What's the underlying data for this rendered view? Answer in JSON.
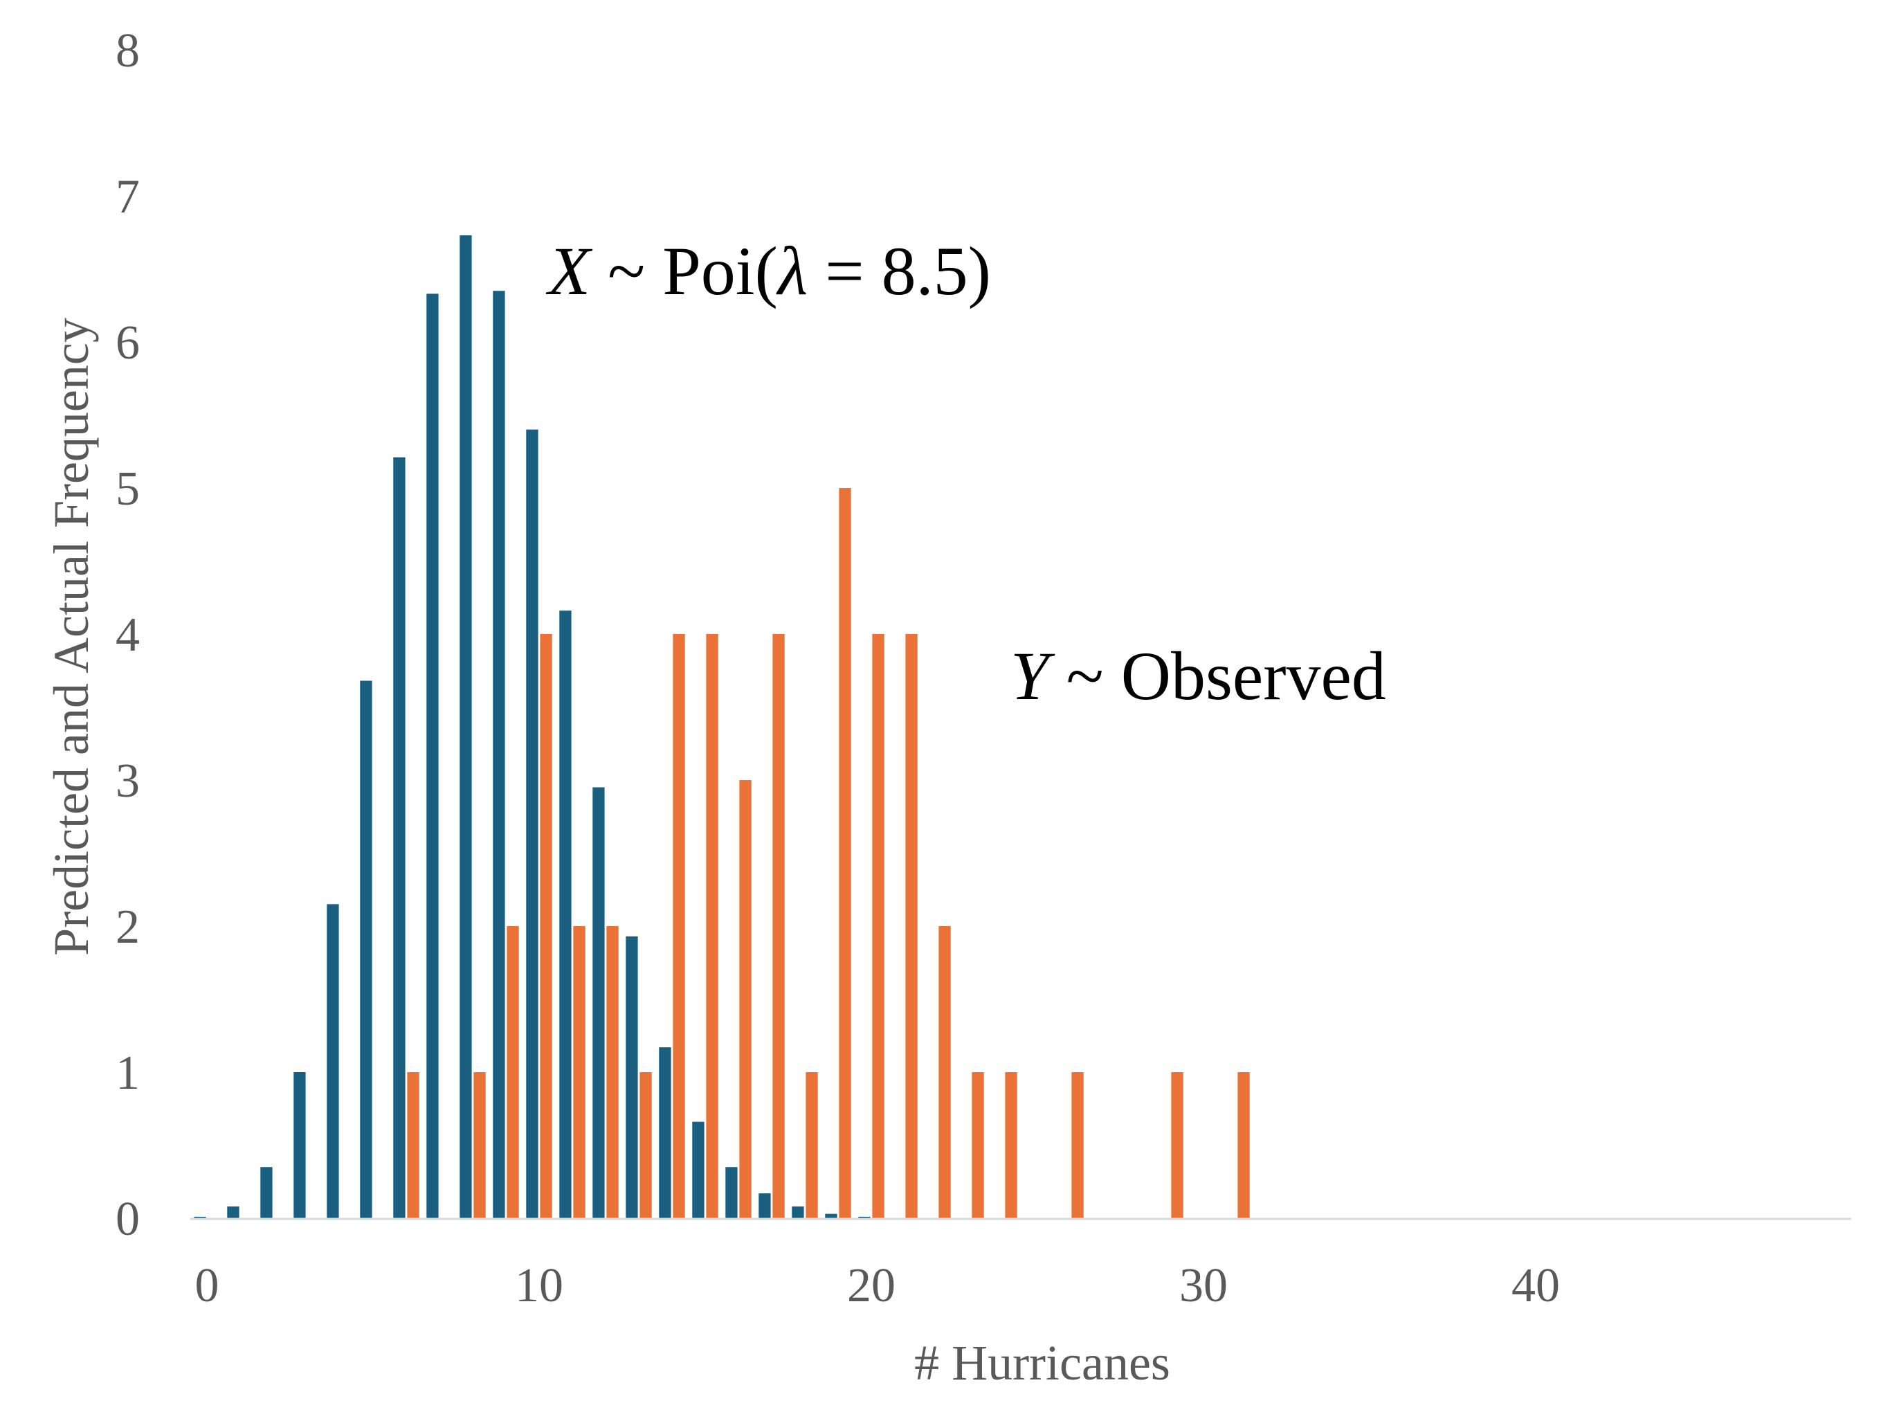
{
  "chart_data": {
    "type": "bar",
    "xlabel": "# Hurricanes",
    "ylabel": "Predicted and Actual Frequency",
    "xlim": [
      -0.5,
      49.5
    ],
    "ylim": [
      0,
      8
    ],
    "x_ticks": [
      0,
      10,
      20,
      30,
      40
    ],
    "y_ticks": [
      0,
      1,
      2,
      3,
      4,
      5,
      6,
      7,
      8
    ],
    "grid": false,
    "legend": "none",
    "series": [
      {
        "color": "#1a5e80",
        "x": [
          0,
          1,
          2,
          3,
          4,
          5,
          6,
          7,
          8,
          9,
          10,
          11,
          12,
          13,
          14,
          15,
          16,
          17,
          18,
          19,
          20
        ],
        "values": [
          0.01,
          0.08,
          0.35,
          1.0,
          2.15,
          3.68,
          5.21,
          6.33,
          6.73,
          6.35,
          5.4,
          4.16,
          2.95,
          1.93,
          1.17,
          0.66,
          0.35,
          0.17,
          0.08,
          0.03,
          0.01
        ]
      },
      {
        "color": "#eb7236",
        "x": [
          6,
          8,
          9,
          10,
          11,
          12,
          13,
          14,
          15,
          16,
          17,
          18,
          19,
          20,
          21,
          22,
          23,
          24,
          26,
          29,
          31
        ],
        "values": [
          1,
          1,
          2,
          4,
          2,
          2,
          1,
          4,
          4,
          3,
          4,
          1,
          5,
          4,
          4,
          2,
          1,
          1,
          1,
          1,
          1
        ]
      }
    ],
    "annotations": [
      {
        "var": "X",
        "rest_a": " ~ Poi(",
        "sym": "λ",
        "rest_b": " = 8.5)"
      },
      {
        "var": "Y",
        "rest_a": " ~ Observed"
      }
    ]
  }
}
